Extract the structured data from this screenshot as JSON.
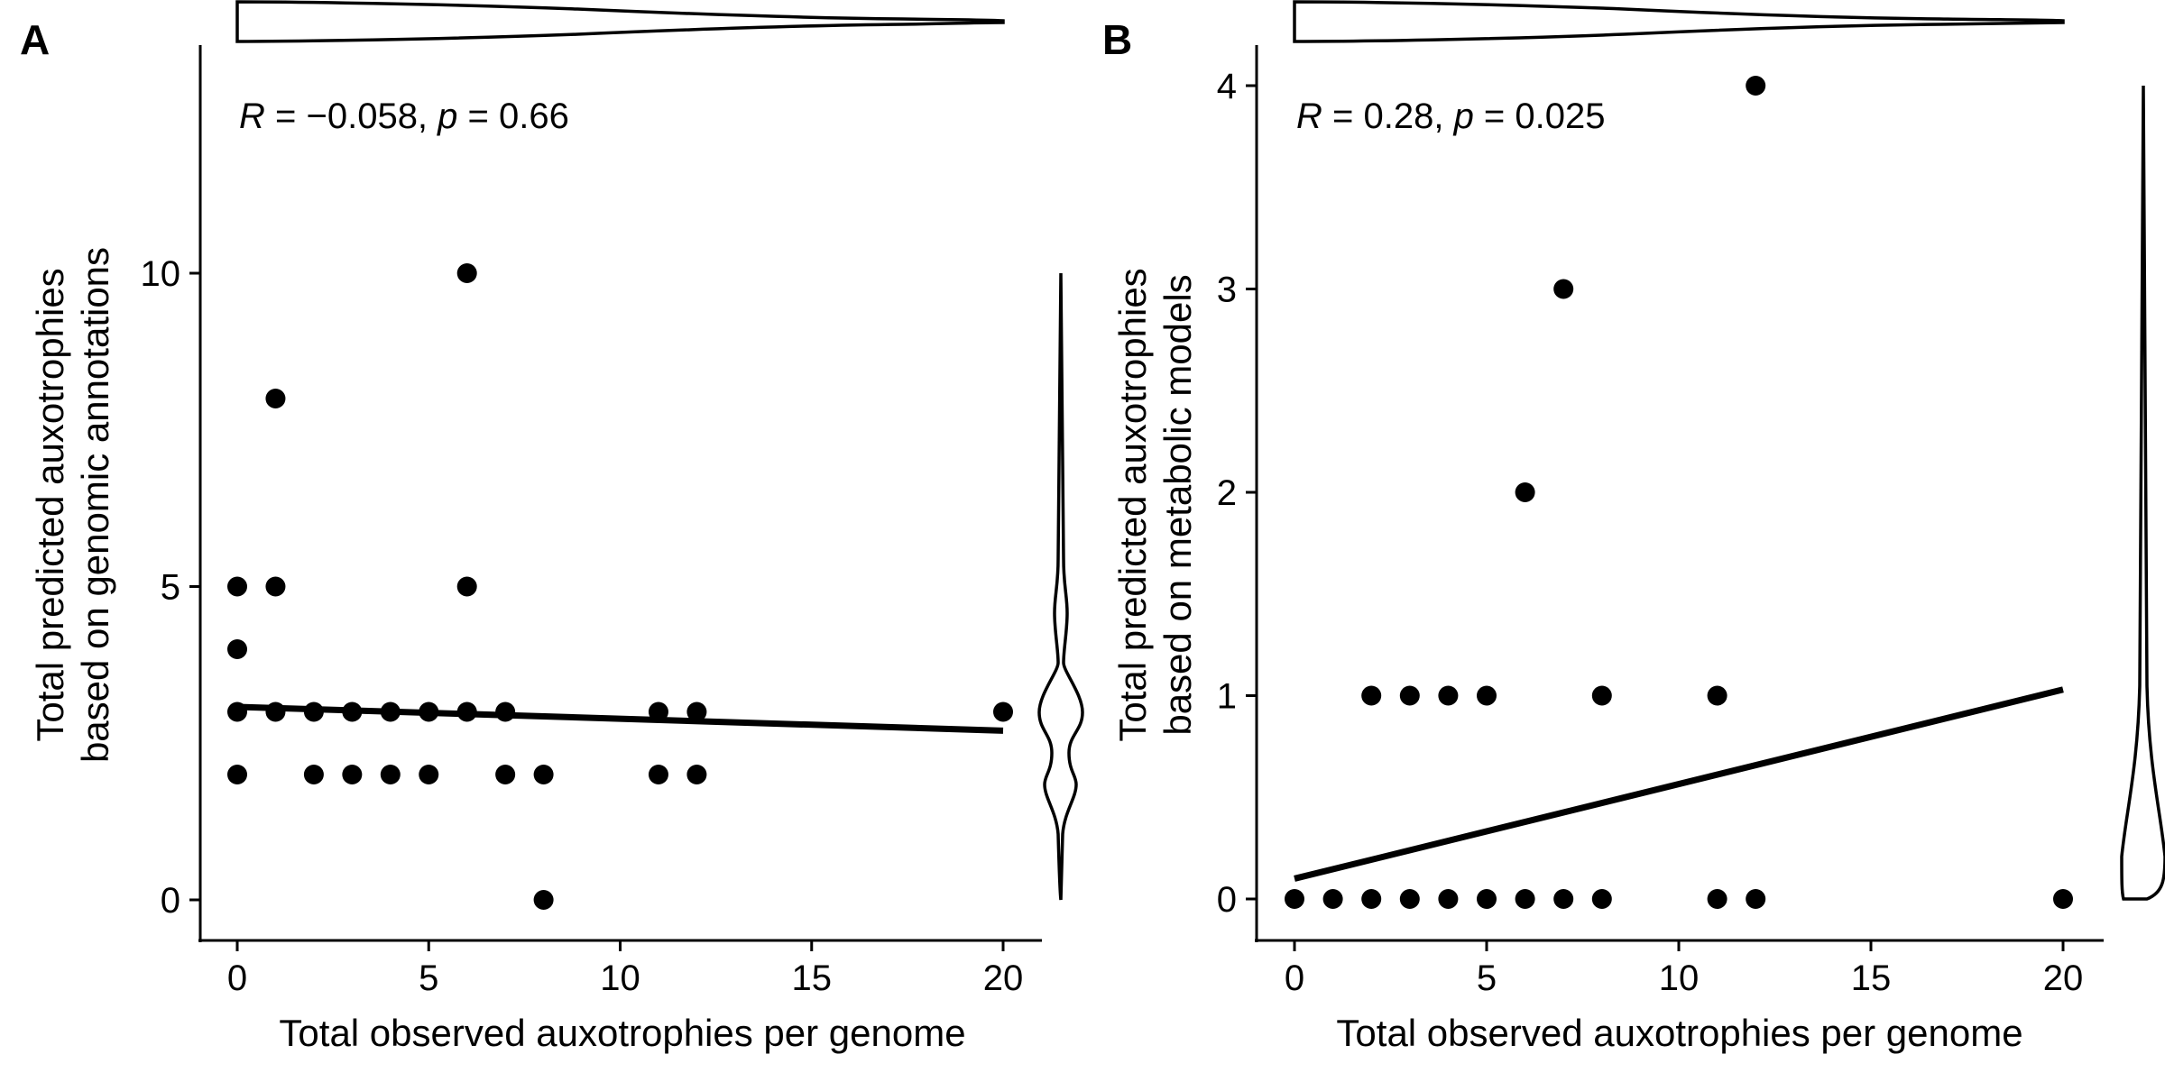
{
  "chart_data": [
    {
      "panel": "A",
      "type": "scatter",
      "xlabel": "Total observed auxotrophies per genome",
      "ylabel": [
        "Total predicted auxotrophies",
        "based on genomic annotations"
      ],
      "xlim": [
        -1,
        21
      ],
      "ylim": [
        -0.7,
        13.6
      ],
      "xticks": [
        0,
        5,
        10,
        15,
        20
      ],
      "yticks": [
        0,
        5,
        10
      ],
      "stat": {
        "R": "R",
        "r_value": " = −0.058, ",
        "p": "p",
        "p_value": " = 0.66"
      },
      "points": [
        [
          0,
          5
        ],
        [
          0,
          4
        ],
        [
          0,
          3
        ],
        [
          0,
          2
        ],
        [
          1,
          8
        ],
        [
          1,
          5
        ],
        [
          1,
          3
        ],
        [
          2,
          3
        ],
        [
          2,
          2
        ],
        [
          3,
          3
        ],
        [
          3,
          2
        ],
        [
          4,
          3
        ],
        [
          4,
          2
        ],
        [
          5,
          3
        ],
        [
          5,
          2
        ],
        [
          6,
          10
        ],
        [
          6,
          5
        ],
        [
          6,
          3
        ],
        [
          7,
          3
        ],
        [
          7,
          2
        ],
        [
          8,
          2
        ],
        [
          8,
          0
        ],
        [
          11,
          3
        ],
        [
          11,
          2
        ],
        [
          12,
          3
        ],
        [
          12,
          2
        ],
        [
          20,
          3
        ]
      ],
      "fit": {
        "x": [
          0,
          20
        ],
        "y": [
          3.08,
          2.7
        ]
      },
      "marginal_x_violin": true,
      "marginal_y_violin": true,
      "grid": false
    },
    {
      "panel": "B",
      "type": "scatter",
      "xlabel": "Total observed auxotrophies per genome",
      "ylabel": [
        "Total predicted auxotrophies",
        "based on metabolic models"
      ],
      "xlim": [
        -1,
        21
      ],
      "ylim": [
        -0.2,
        4.2
      ],
      "xticks": [
        0,
        5,
        10,
        15,
        20
      ],
      "yticks": [
        0,
        1,
        2,
        3,
        4
      ],
      "stat": {
        "R": "R",
        "r_value": " = 0.28, ",
        "p": "p",
        "p_value": " = 0.025"
      },
      "points": [
        [
          0,
          0
        ],
        [
          1,
          0
        ],
        [
          2,
          0
        ],
        [
          3,
          0
        ],
        [
          4,
          0
        ],
        [
          5,
          0
        ],
        [
          6,
          0
        ],
        [
          7,
          0
        ],
        [
          8,
          0
        ],
        [
          11,
          0
        ],
        [
          12,
          0
        ],
        [
          20,
          0
        ],
        [
          2,
          1
        ],
        [
          3,
          1
        ],
        [
          4,
          1
        ],
        [
          5,
          1
        ],
        [
          8,
          1
        ],
        [
          11,
          1
        ],
        [
          6,
          2
        ],
        [
          7,
          3
        ],
        [
          12,
          4
        ]
      ],
      "fit": {
        "x": [
          0,
          20
        ],
        "y": [
          0.1,
          1.03
        ]
      },
      "marginal_x_violin": true,
      "marginal_y_violin": true,
      "grid": false
    }
  ]
}
